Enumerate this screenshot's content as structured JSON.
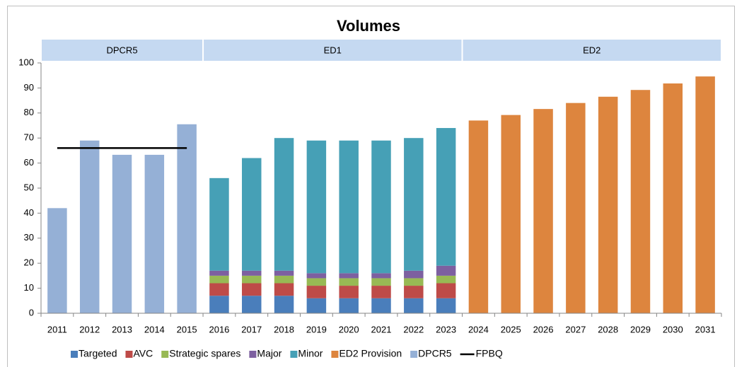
{
  "chart_data": {
    "type": "bar",
    "stacked": true,
    "title": "Volumes",
    "periods": [
      {
        "label": "DPCR5",
        "span": 5
      },
      {
        "label": "ED1",
        "span": 8
      },
      {
        "label": "ED2",
        "span": 8
      }
    ],
    "categories": [
      "2011",
      "2012",
      "2013",
      "2014",
      "2015",
      "2016",
      "2017",
      "2018",
      "2019",
      "2020",
      "2021",
      "2022",
      "2023",
      "2024",
      "2025",
      "2026",
      "2027",
      "2028",
      "2029",
      "2030",
      "2031"
    ],
    "series": [
      {
        "name": "Targeted",
        "color": "#4a7ebb",
        "values": [
          null,
          null,
          null,
          null,
          null,
          7,
          7,
          7,
          6,
          6,
          6,
          6,
          6,
          null,
          null,
          null,
          null,
          null,
          null,
          null,
          null
        ]
      },
      {
        "name": "AVC",
        "color": "#be4b48",
        "values": [
          null,
          null,
          null,
          null,
          null,
          5,
          5,
          5,
          5,
          5,
          5,
          5,
          6,
          null,
          null,
          null,
          null,
          null,
          null,
          null,
          null
        ]
      },
      {
        "name": "Strategic spares",
        "color": "#98b954",
        "values": [
          null,
          null,
          null,
          null,
          null,
          3,
          3,
          3,
          3,
          3,
          3,
          3,
          3,
          null,
          null,
          null,
          null,
          null,
          null,
          null,
          null
        ]
      },
      {
        "name": "Major",
        "color": "#7d60a0",
        "values": [
          null,
          null,
          null,
          null,
          null,
          2,
          2,
          2,
          2,
          2,
          2,
          3,
          4,
          null,
          null,
          null,
          null,
          null,
          null,
          null,
          null
        ]
      },
      {
        "name": "Minor",
        "color": "#46a0b6",
        "values": [
          null,
          null,
          null,
          null,
          null,
          37,
          45,
          53,
          53,
          53,
          53,
          53,
          55,
          null,
          null,
          null,
          null,
          null,
          null,
          null,
          null
        ]
      },
      {
        "name": "ED2 Provision",
        "color": "#dd853e",
        "values": [
          null,
          null,
          null,
          null,
          null,
          null,
          null,
          null,
          null,
          null,
          null,
          null,
          null,
          77,
          79.2,
          81.6,
          84,
          86.5,
          89.2,
          91.8,
          94.6
        ]
      },
      {
        "name": "DPCR5",
        "color": "#95b0d6",
        "values": [
          42,
          69,
          63.3,
          63.3,
          75.5,
          null,
          null,
          null,
          null,
          null,
          null,
          null,
          null,
          null,
          null,
          null,
          null,
          null,
          null,
          null,
          null
        ]
      },
      {
        "name": "FPBQ",
        "color": "#000000",
        "kind": "line",
        "values": [
          66,
          66,
          66,
          66,
          66,
          null,
          null,
          null,
          null,
          null,
          null,
          null,
          null,
          null,
          null,
          null,
          null,
          null,
          null,
          null,
          null
        ]
      }
    ],
    "ylim": [
      0,
      100
    ],
    "yticks": [
      0,
      10,
      20,
      30,
      40,
      50,
      60,
      70,
      80,
      90,
      100
    ],
    "grid": false
  }
}
